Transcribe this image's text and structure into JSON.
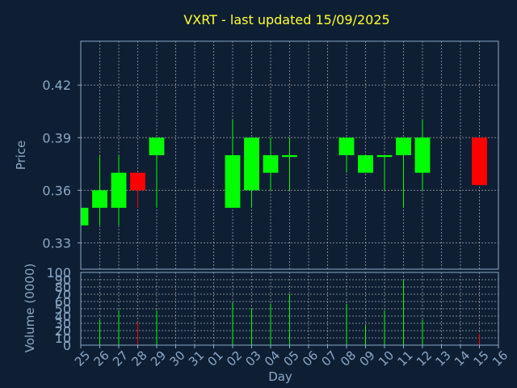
{
  "chart_data": {
    "type": "candlestick",
    "title": "VXRT - last updated 15/09/2025",
    "price_panel": {
      "ylabel": "Price",
      "ylim": [
        0.315,
        0.445
      ],
      "yticks": [
        0.33,
        0.36,
        0.39,
        0.42
      ],
      "ytick_labels": [
        "0.33",
        "0.36",
        "0.39",
        "0.42"
      ],
      "grid": true
    },
    "volume_panel": {
      "ylabel": "Volume (0000)",
      "ylim": [
        0,
        100
      ],
      "yticks": [
        0,
        10,
        20,
        30,
        40,
        50,
        60,
        70,
        80,
        90,
        100
      ],
      "ytick_labels": [
        "0",
        "10",
        "20",
        "30",
        "40",
        "50",
        "60",
        "70",
        "80",
        "90",
        "100"
      ],
      "grid": true
    },
    "xlabel": "Day",
    "categories": [
      "25",
      "26",
      "27",
      "28",
      "29",
      "30",
      "31",
      "01",
      "02",
      "03",
      "04",
      "05",
      "06",
      "07",
      "08",
      "09",
      "10",
      "11",
      "12",
      "13",
      "14",
      "15",
      "16"
    ],
    "candles": [
      {
        "day": "25",
        "open": 0.34,
        "high": 0.35,
        "low": 0.34,
        "close": 0.35,
        "volume": 0
      },
      {
        "day": "26",
        "open": 0.35,
        "high": 0.38,
        "low": 0.34,
        "close": 0.36,
        "volume": 35
      },
      {
        "day": "27",
        "open": 0.35,
        "high": 0.38,
        "low": 0.34,
        "close": 0.37,
        "volume": 48
      },
      {
        "day": "28",
        "open": 0.37,
        "high": 0.37,
        "low": 0.35,
        "close": 0.36,
        "volume": 32
      },
      {
        "day": "29",
        "open": 0.38,
        "high": 0.39,
        "low": 0.35,
        "close": 0.39,
        "volume": 48
      },
      {
        "day": "02",
        "open": 0.35,
        "high": 0.4,
        "low": 0.35,
        "close": 0.38,
        "volume": 58
      },
      {
        "day": "03",
        "open": 0.36,
        "high": 0.39,
        "low": 0.35,
        "close": 0.39,
        "volume": 50
      },
      {
        "day": "04",
        "open": 0.37,
        "high": 0.39,
        "low": 0.36,
        "close": 0.38,
        "volume": 57
      },
      {
        "day": "05",
        "open": 0.379,
        "high": 0.39,
        "low": 0.36,
        "close": 0.38,
        "volume": 70
      },
      {
        "day": "08",
        "open": 0.38,
        "high": 0.39,
        "low": 0.37,
        "close": 0.39,
        "volume": 57
      },
      {
        "day": "09",
        "open": 0.37,
        "high": 0.38,
        "low": 0.37,
        "close": 0.38,
        "volume": 27
      },
      {
        "day": "10",
        "open": 0.379,
        "high": 0.38,
        "low": 0.36,
        "close": 0.38,
        "volume": 48
      },
      {
        "day": "11",
        "open": 0.38,
        "high": 0.39,
        "low": 0.35,
        "close": 0.39,
        "volume": 89
      },
      {
        "day": "12",
        "open": 0.37,
        "high": 0.4,
        "low": 0.36,
        "close": 0.39,
        "volume": 35
      },
      {
        "day": "15",
        "open": 0.39,
        "high": 0.39,
        "low": 0.363,
        "close": 0.363,
        "volume": 16
      }
    ],
    "colors": {
      "background": "#0f1f33",
      "text": "#89a8c8",
      "title": "#ffff33",
      "grid": "#c8c8c8",
      "frame": "#89a8c8",
      "up": "#00ff00",
      "down": "#ff0000"
    }
  }
}
